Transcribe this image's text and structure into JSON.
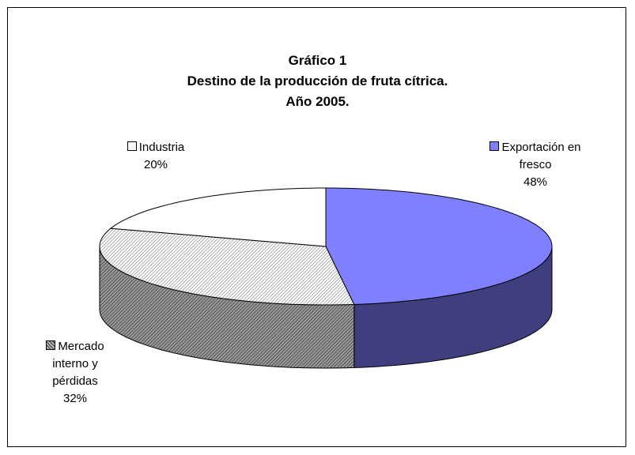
{
  "chart_data": {
    "type": "pie",
    "title": [
      "Gráfico 1",
      "Destino de la producción de fruta cítrica.",
      "Año 2005."
    ],
    "categories": [
      "Exportación en fresco",
      "Mercado interno y pérdidas",
      "Industria"
    ],
    "values": [
      48,
      32,
      20
    ],
    "value_labels": [
      "48%",
      "32%",
      "20%"
    ],
    "colors": [
      "#8080ff",
      "#d4d4d4",
      "#ffffff"
    ],
    "side_colors": [
      "#3f3f7f",
      "#6e6e6e",
      "#9a9a9a"
    ],
    "hatch": [
      false,
      true,
      false
    ],
    "three_d": true
  }
}
